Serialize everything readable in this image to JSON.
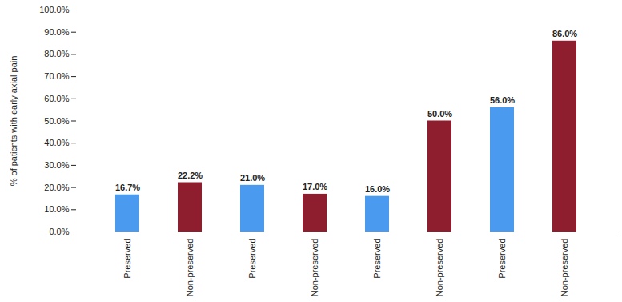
{
  "chart_data": {
    "type": "bar",
    "y_label": "% of patients with early axial pain",
    "categories": [
      "Preserved",
      "Non-preserved",
      "Preserved",
      "Non-preserved",
      "Preserved",
      "Non-preserved",
      "Preserved",
      "Non-preserved"
    ],
    "values": [
      16.7,
      22.2,
      21.0,
      17.0,
      16.0,
      50.0,
      56.0,
      86.0
    ],
    "value_labels": [
      "16.7%",
      "22.2%",
      "21.0%",
      "17.0%",
      "16.0%",
      "50.0%",
      "56.0%",
      "86.0%"
    ],
    "colors": [
      "#4a9bf0",
      "#8e1d2e",
      "#4a9bf0",
      "#8e1d2e",
      "#4a9bf0",
      "#8e1d2e",
      "#4a9bf0",
      "#8e1d2e"
    ],
    "ylim": [
      0,
      100
    ],
    "yticks": [
      {
        "value": 0,
        "label": "0.0%"
      },
      {
        "value": 10,
        "label": "10.0%"
      },
      {
        "value": 20,
        "label": "20.0%"
      },
      {
        "value": 30,
        "label": "30.0%"
      },
      {
        "value": 40,
        "label": "40.0%"
      },
      {
        "value": 50,
        "label": "50.0%"
      },
      {
        "value": 60,
        "label": "60.0%"
      },
      {
        "value": 70,
        "label": "70.0%"
      },
      {
        "value": 80,
        "label": "80.0%"
      },
      {
        "value": 90,
        "label": "90.0%"
      },
      {
        "value": 100,
        "label": "100.0%"
      }
    ],
    "grid": false,
    "data_labels": true
  }
}
